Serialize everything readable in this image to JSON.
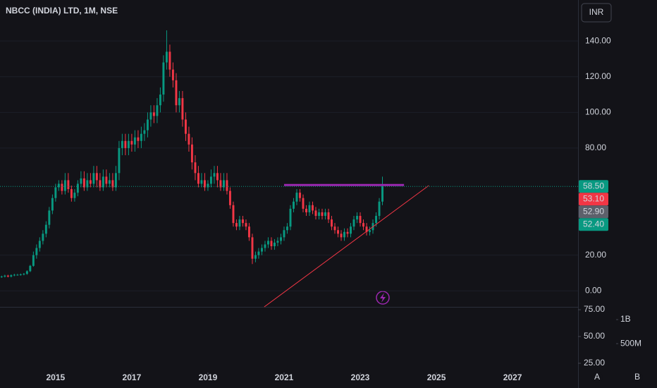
{
  "chart_data": {
    "type": "candlestick",
    "title": "NBCC (INDIA) LTD, 1M, NSE",
    "currency": "INR",
    "up_color": "#089981",
    "down_color": "#f23645",
    "x": [
      2013.583,
      2013.667,
      2013.75,
      2013.833,
      2013.917,
      2014,
      2014.083,
      2014.167,
      2014.25,
      2014.333,
      2014.417,
      2014.5,
      2014.583,
      2014.667,
      2014.75,
      2014.833,
      2014.917,
      2015,
      2015.083,
      2015.167,
      2015.25,
      2015.333,
      2015.417,
      2015.5,
      2015.583,
      2015.667,
      2015.75,
      2015.833,
      2015.917,
      2016,
      2016.083,
      2016.167,
      2016.25,
      2016.333,
      2016.417,
      2016.5,
      2016.583,
      2016.667,
      2016.75,
      2016.833,
      2016.917,
      2017,
      2017.083,
      2017.167,
      2017.25,
      2017.333,
      2017.417,
      2017.5,
      2017.583,
      2017.667,
      2017.75,
      2017.833,
      2017.917,
      2018,
      2018.083,
      2018.167,
      2018.25,
      2018.333,
      2018.417,
      2018.5,
      2018.583,
      2018.667,
      2018.75,
      2018.833,
      2018.917,
      2019,
      2019.083,
      2019.167,
      2019.25,
      2019.333,
      2019.417,
      2019.5,
      2019.583,
      2019.667,
      2019.75,
      2019.833,
      2019.917,
      2020,
      2020.083,
      2020.167,
      2020.25,
      2020.333,
      2020.417,
      2020.5,
      2020.583,
      2020.667,
      2020.75,
      2020.833,
      2020.917,
      2021,
      2021.083,
      2021.167,
      2021.25,
      2021.333,
      2021.417,
      2021.5,
      2021.583,
      2021.667,
      2021.75,
      2021.833,
      2021.917,
      2022,
      2022.083,
      2022.167,
      2022.25,
      2022.333,
      2022.417,
      2022.5,
      2022.583,
      2022.667,
      2022.75,
      2022.833,
      2022.917,
      2023,
      2023.083,
      2023.167,
      2023.25,
      2023.333,
      2023.417,
      2023.5,
      2023.583
    ],
    "open": [
      7.8,
      8,
      8.5,
      8,
      8.7,
      9,
      9,
      9.2,
      9.5,
      11,
      14,
      20,
      24,
      28,
      32,
      37,
      45,
      52,
      58,
      60,
      56,
      62,
      57,
      52,
      55,
      60,
      63,
      58,
      62,
      60,
      66,
      62,
      58,
      64,
      60,
      62,
      58,
      66,
      80,
      84,
      80,
      84,
      82,
      86,
      84,
      88,
      90,
      96,
      100,
      98,
      104,
      110,
      128,
      134,
      124,
      118,
      104,
      108,
      96,
      88,
      82,
      72,
      66,
      60,
      62,
      58,
      60,
      64,
      66,
      62,
      58,
      62,
      56,
      48,
      38,
      36,
      40,
      38,
      36,
      30,
      18,
      20,
      22,
      24,
      26,
      28,
      25,
      27,
      28,
      30,
      34,
      36,
      46,
      50,
      55,
      52,
      46,
      44,
      48,
      45,
      42,
      44,
      42,
      44,
      40,
      36,
      34,
      32,
      30,
      33,
      32,
      36,
      40,
      42,
      38,
      36,
      33,
      34,
      38,
      42,
      50
    ],
    "high": [
      8.5,
      9,
      9,
      9.2,
      9.5,
      9.5,
      9.7,
      10,
      11.5,
      14.5,
      22,
      26,
      30,
      34,
      39,
      47,
      54,
      60,
      62,
      62,
      66,
      66,
      59,
      57,
      62,
      67,
      67,
      66,
      66,
      70,
      70,
      66,
      68,
      68,
      66,
      66,
      70,
      84,
      88,
      88,
      88,
      88,
      90,
      90,
      92,
      94,
      100,
      104,
      104,
      108,
      114,
      132,
      146,
      138,
      128,
      122,
      112,
      112,
      100,
      92,
      86,
      76,
      70,
      66,
      66,
      62,
      68,
      70,
      70,
      66,
      66,
      66,
      58,
      50,
      40,
      42,
      42,
      40,
      38,
      32,
      22,
      24,
      26,
      28,
      30,
      30,
      29,
      30,
      32,
      36,
      38,
      48,
      52,
      57,
      57,
      54,
      48,
      50,
      50,
      47,
      46,
      46,
      46,
      46,
      42,
      38,
      36,
      34,
      35,
      35,
      38,
      42,
      44,
      44,
      40,
      38,
      36,
      40,
      44,
      52,
      64
    ],
    "low": [
      7.3,
      7.5,
      7.5,
      7.5,
      8.2,
      8.5,
      8.5,
      8.7,
      9,
      10.5,
      13.5,
      18,
      22,
      26,
      30,
      35,
      43,
      50,
      56,
      54,
      54,
      55,
      50,
      50,
      53,
      58,
      56,
      56,
      58,
      58,
      58,
      56,
      56,
      58,
      58,
      56,
      56,
      62,
      76,
      76,
      76,
      78,
      78,
      80,
      80,
      84,
      86,
      92,
      94,
      94,
      100,
      106,
      124,
      120,
      114,
      100,
      100,
      92,
      84,
      78,
      68,
      62,
      58,
      58,
      56,
      56,
      58,
      60,
      58,
      56,
      56,
      54,
      46,
      36,
      34,
      34,
      36,
      34,
      28,
      15,
      16,
      18,
      20,
      22,
      24,
      23,
      23,
      25,
      26,
      28,
      32,
      34,
      44,
      48,
      50,
      44,
      42,
      42,
      43,
      40,
      40,
      40,
      40,
      38,
      34,
      32,
      30,
      28,
      28,
      30,
      30,
      34,
      38,
      36,
      34,
      31,
      31,
      32,
      36,
      40,
      48
    ],
    "close": [
      8,
      8.5,
      8,
      8.7,
      9,
      9,
      9.2,
      9.5,
      11,
      14,
      20,
      24,
      28,
      32,
      37,
      45,
      52,
      58,
      60,
      56,
      62,
      57,
      52,
      55,
      60,
      63,
      58,
      62,
      60,
      66,
      62,
      58,
      64,
      60,
      62,
      58,
      66,
      80,
      84,
      80,
      84,
      82,
      86,
      84,
      88,
      90,
      96,
      100,
      98,
      104,
      110,
      128,
      134,
      124,
      118,
      104,
      108,
      96,
      88,
      82,
      72,
      66,
      60,
      62,
      58,
      60,
      64,
      66,
      62,
      58,
      62,
      56,
      48,
      38,
      36,
      40,
      38,
      36,
      30,
      18,
      20,
      22,
      24,
      26,
      28,
      25,
      27,
      28,
      30,
      34,
      36,
      46,
      50,
      55,
      52,
      46,
      44,
      48,
      45,
      42,
      44,
      42,
      44,
      40,
      36,
      34,
      32,
      30,
      33,
      32,
      36,
      40,
      42,
      38,
      36,
      33,
      34,
      38,
      42,
      50,
      58.5
    ],
    "xlim": [
      2013.54,
      2028.72
    ],
    "xticks": [
      2015,
      2017,
      2019,
      2021,
      2023,
      2025,
      2027
    ],
    "ylim": [
      -9,
      163
    ],
    "yticks": [
      {
        "value": 0,
        "label": "0.00"
      },
      {
        "value": 20,
        "label": "20.00"
      },
      {
        "value": 80,
        "label": "80.00"
      },
      {
        "value": 100,
        "label": "100.00"
      },
      {
        "value": 120,
        "label": "120.00"
      },
      {
        "value": 140,
        "label": "140.00"
      }
    ],
    "price_labels": [
      {
        "value": 58.5,
        "label": "58.50",
        "color": "#089981"
      },
      {
        "value": 53.1,
        "label": "53.10",
        "color": "#f23645"
      },
      {
        "value": 52.9,
        "label": "52.90",
        "color": "#5d606b"
      },
      {
        "value": 52.4,
        "label": "52.40",
        "color": "#089981"
      }
    ],
    "drawings": [
      {
        "color": "#9c27b0",
        "points": [
          [
            2021.0,
            59.3
          ],
          [
            2024.15,
            59.3
          ]
        ]
      },
      {
        "color": "#f23645",
        "points": [
          [
            2020.48,
            -9
          ],
          [
            2024.8,
            59
          ]
        ]
      }
    ],
    "pane2_ylim": [
      16.4,
      77
    ],
    "pane2_ticks": [
      {
        "value": 75,
        "label": "75.00"
      },
      {
        "value": 50,
        "label": "50.00"
      },
      {
        "value": 25,
        "label": "25.00"
      }
    ],
    "volume_ylim": [
      -100000000,
      1250000000
    ],
    "volume_ticks": [
      {
        "value": 1000000000,
        "label": "1B"
      },
      {
        "value": 500000000,
        "label": "500M"
      }
    ],
    "footer_buttons": [
      "A",
      "B"
    ]
  }
}
